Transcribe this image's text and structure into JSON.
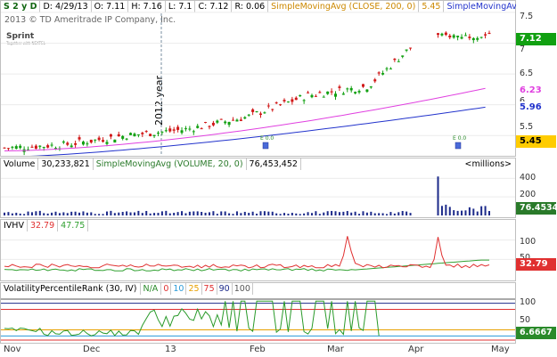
{
  "header": {
    "symbol": "S 2 y D",
    "date": "D: 4/29/13",
    "open": "O: 7.11",
    "high": "H: 7.16",
    "low": "L: 7.1",
    "close": "C: 7.12",
    "range": "R: 0.06",
    "sma_label": "SimpleMovingAvg (CLOSE, 200, 0)",
    "sma_value": "5.45",
    "sma2_label": "SimpleMovingAvg (CL..."
  },
  "copyright": "2013 © TD Ameritrade IP Company, Inc.",
  "logo": {
    "name": "Sprint",
    "tagline": "Together with NEXTEL"
  },
  "year_label": "2012 year",
  "price_ticks": [
    "7.5",
    "7",
    "6.5",
    "6",
    "5.5"
  ],
  "badges": {
    "last": "7.12",
    "sma_pink": "6.23",
    "sma_blue": "5.96",
    "sma_200": "5.45"
  },
  "event_markers": [
    "E 0.0",
    "E 0.0"
  ],
  "volume": {
    "label": "Volume",
    "value": "30,233,821",
    "sma_label": "SimpleMovingAvg (VOLUME, 20, 0)",
    "sma_value": "76,453,452",
    "units": "<millions>",
    "ticks": [
      "400",
      "200"
    ],
    "badge": "76.4534"
  },
  "ivhv": {
    "label": "IVHV",
    "iv": "32.79",
    "hv": "47.75",
    "ticks": [
      "100",
      "50"
    ],
    "badge": "32.79"
  },
  "vpr": {
    "label": "VolatilityPercentileRank (30, IV)",
    "na": "N/A",
    "levels": [
      "0",
      "10",
      "25",
      "75",
      "90",
      "100"
    ],
    "ticks": [
      "100",
      "50"
    ],
    "badge": "6.6667"
  },
  "x_labels": [
    "Nov",
    "Dec",
    "13",
    "Feb",
    "Mar",
    "Apr",
    "May"
  ],
  "colors": {
    "up": "#11a011",
    "down": "#d11818",
    "sma_pink": "#e040e0",
    "sma_blue": "#2233cc",
    "sma_200": "#cc9900",
    "volume": "#1c2a8a",
    "iv": "#e03030",
    "hv": "#30a030"
  },
  "chart_data": {
    "type": "candlestick",
    "ylim": [
      5.2,
      7.6
    ],
    "x": [
      "Nov",
      "Dec",
      "13",
      "Feb",
      "Mar",
      "Apr",
      "May"
    ],
    "close_approx": [
      5.3,
      5.35,
      5.5,
      5.6,
      5.8,
      6.15,
      6.3,
      7.2,
      7.12
    ]
  }
}
